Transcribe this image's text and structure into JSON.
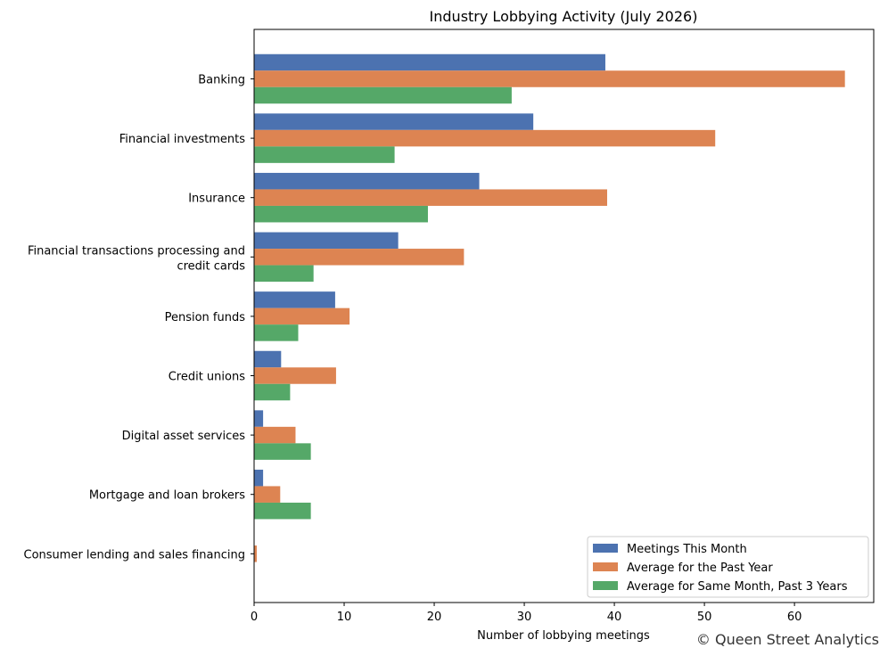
{
  "chart_data": {
    "type": "bar",
    "orientation": "horizontal",
    "title": "Industry Lobbying Activity (July 2026)",
    "xlabel": "Number of lobbying meetings",
    "ylabel": "",
    "xlim": [
      0,
      68.8
    ],
    "xticks": [
      0,
      10,
      20,
      30,
      40,
      50,
      60
    ],
    "grid": false,
    "legend_position": "lower-right",
    "categories": [
      "Banking",
      "Financial investments",
      "Insurance",
      "Financial transactions processing and credit cards",
      "Pension funds",
      "Credit unions",
      "Digital asset services",
      "Mortgage and loan brokers",
      "Consumer lending and sales financing"
    ],
    "series": [
      {
        "name": "Meetings This Month",
        "color": "#4c72b0",
        "values": [
          39,
          31,
          25,
          16,
          9,
          3,
          1,
          1,
          0
        ]
      },
      {
        "name": "Average for the Past Year",
        "color": "#dd8452",
        "values": [
          65.6,
          51.2,
          39.2,
          23.3,
          10.6,
          9.1,
          4.6,
          2.9,
          0.3
        ]
      },
      {
        "name": "Average for Same Month, Past 3 Years",
        "color": "#55a868",
        "values": [
          28.6,
          15.6,
          19.3,
          6.6,
          4.9,
          4.0,
          6.3,
          6.3,
          0
        ]
      }
    ]
  },
  "watermark": "© Queen Street Analytics"
}
